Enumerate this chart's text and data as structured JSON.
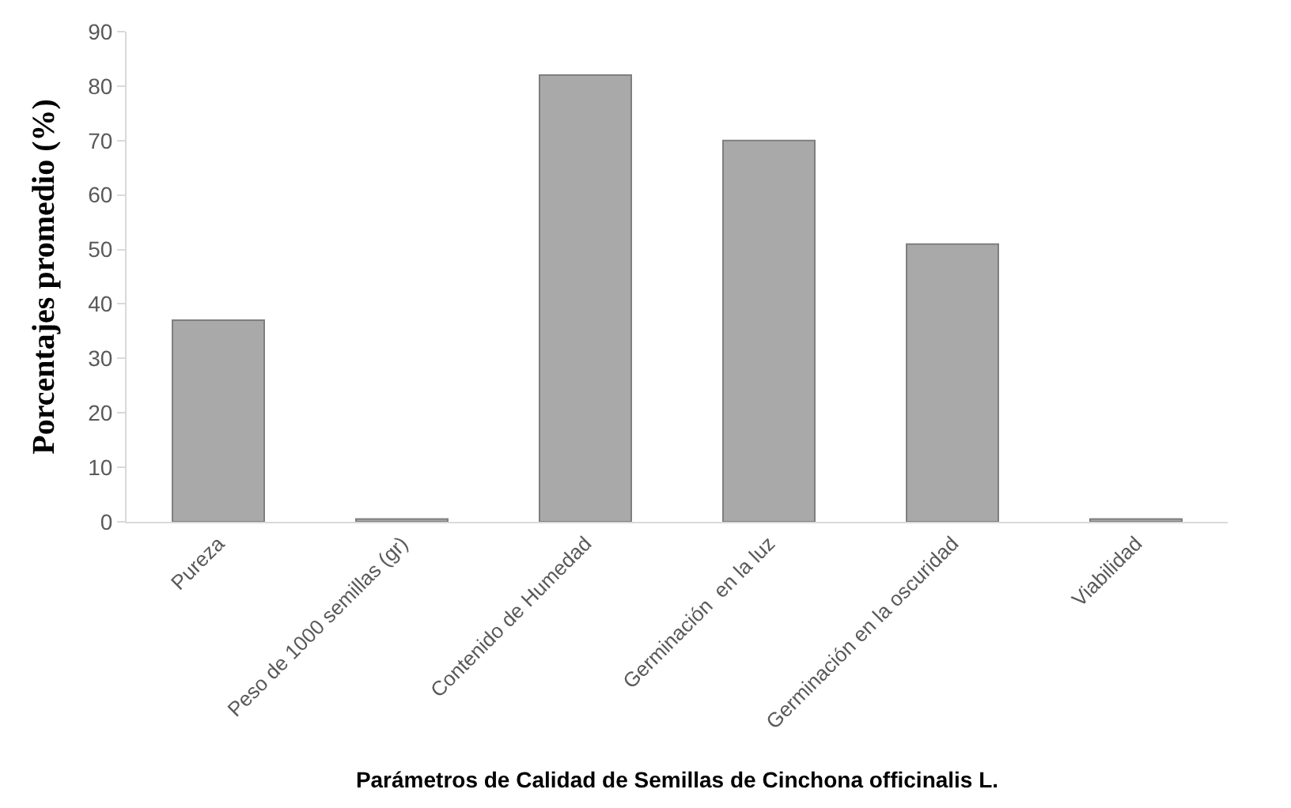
{
  "chart_data": {
    "type": "bar",
    "categories": [
      "Pureza",
      "Peso de 1000 semillas (gr)",
      "Contenido de Humedad",
      "Germinación  en la luz",
      "Germinación en la oscuridad",
      "Viabilidad"
    ],
    "values": [
      37,
      0.5,
      82,
      70,
      51,
      0.5
    ],
    "color": "#a9a9a9",
    "ylim": [
      0,
      90
    ],
    "yticks": [
      0,
      10,
      20,
      30,
      40,
      50,
      60,
      70,
      80,
      90
    ],
    "xlabel": "Parámetros de Calidad de Semillas de Cinchona officinalis L.",
    "ylabel": "Porcentajes promedio (%)"
  }
}
